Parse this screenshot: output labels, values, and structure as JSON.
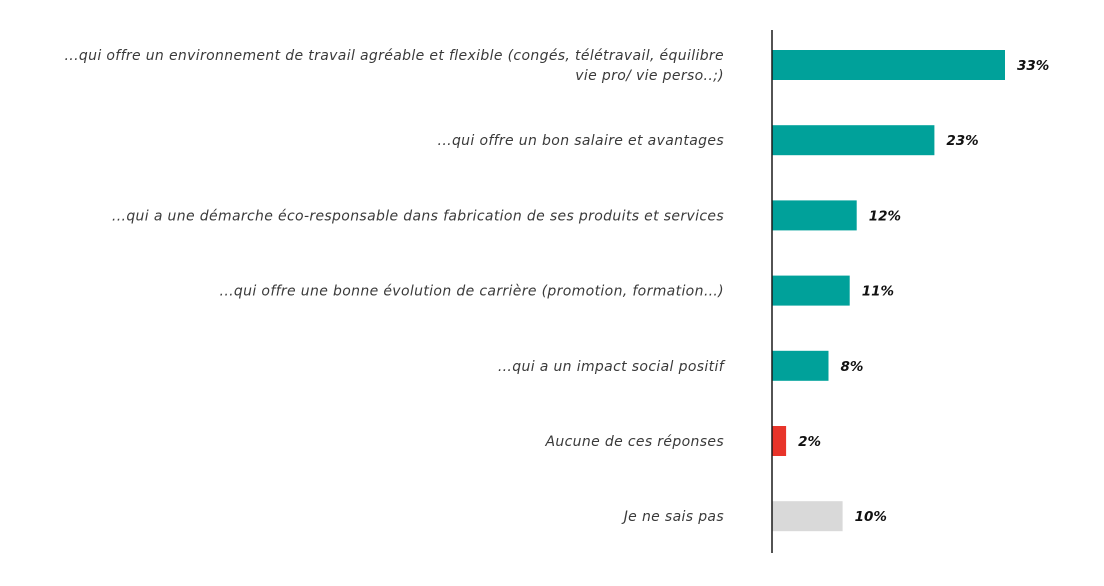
{
  "chart_data": {
    "type": "bar",
    "orientation": "horizontal",
    "categories": [
      "...qui offre un environnement de travail agréable et flexible (congés, télétravail, équilibre vie pro/ vie perso..;)",
      "...qui offre un bon salaire et avantages",
      "...qui a une démarche éco-responsable dans fabrication de ses produits et services",
      "...qui offre une bonne évolution de carrière (promotion, formation…)",
      "...qui a un impact social positif",
      "Aucune de ces réponses",
      "Je ne sais pas"
    ],
    "category_lines": [
      [
        "...qui offre un environnement de travail agréable et flexible (congés, télétravail, équilibre",
        "vie pro/ vie perso..;)"
      ],
      [
        "...qui offre un bon salaire et avantages"
      ],
      [
        "...qui a une démarche éco-responsable dans fabrication de ses produits et services"
      ],
      [
        "...qui offre une bonne évolution de carrière (promotion, formation…)"
      ],
      [
        "...qui a un impact social positif"
      ],
      [
        "Aucune de ces réponses"
      ],
      [
        "Je ne sais pas"
      ]
    ],
    "values": [
      33,
      23,
      12,
      11,
      8,
      2,
      10
    ],
    "value_labels": [
      "33%",
      "23%",
      "12%",
      "11%",
      "8%",
      "2%",
      "10%"
    ],
    "unit": "%",
    "colors": [
      "#00a19a",
      "#00a19a",
      "#00a19a",
      "#00a19a",
      "#00a19a",
      "#e8342a",
      "#d9d9d9"
    ],
    "title": "",
    "xlabel": "",
    "ylabel": "",
    "xlim": [
      0,
      33
    ],
    "grid": false,
    "legend": "none"
  }
}
